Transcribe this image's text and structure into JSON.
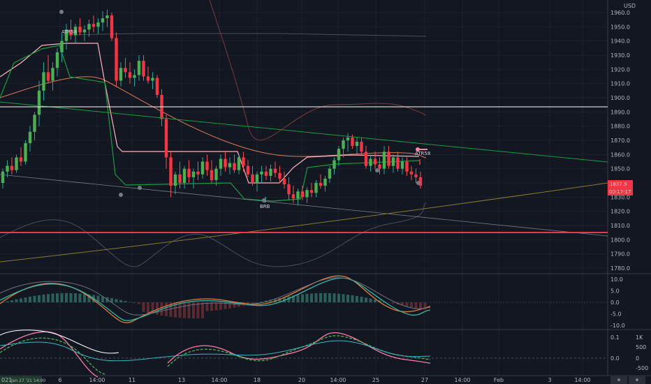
{
  "currency": "USD",
  "price_axis": {
    "min": 1775,
    "max": 1965,
    "labels": [
      "1960.0",
      "1950.0",
      "1940.0",
      "1930.0",
      "1920.0",
      "1910.0",
      "1900.0",
      "1890.0",
      "1880.0",
      "1870.0",
      "1860.0",
      "1850.0",
      "1840.0",
      "1830.0",
      "1820.0",
      "1810.0",
      "1800.0",
      "1790.0",
      "1780.0"
    ]
  },
  "price_tags": {
    "current_price": "1837.9",
    "countdown": "00:17:17",
    "hidden_tag": "1840.0"
  },
  "macd_axis": {
    "labels": [
      "10.0",
      "5.0",
      "0.0",
      "-5.0",
      "-10.0"
    ]
  },
  "osc_axis": {
    "left_labels": [
      "0.1",
      "0.0",
      "-0.1"
    ],
    "right_labels": [
      "1K",
      "500",
      "0",
      "-500"
    ]
  },
  "time_axis": {
    "labels": [
      "6",
      "14:00",
      "11",
      "13",
      "14:00",
      "18",
      "20",
      "14:00",
      "25",
      "27",
      "14:00",
      "Feb",
      "3",
      "14:00"
    ],
    "footer_left": "021",
    "footer_badge": "Jan 27 '21 14:00"
  },
  "annotations": {
    "atr_top": "ATR58",
    "atr_right": "ATR58",
    "brb": "BRB"
  },
  "chart_data": {
    "type": "candlestick",
    "instrument_note": "",
    "ohlc": [
      [
        1840,
        1850,
        1836,
        1848
      ],
      [
        1848,
        1856,
        1844,
        1852
      ],
      [
        1852,
        1858,
        1846,
        1849
      ],
      [
        1849,
        1860,
        1847,
        1858
      ],
      [
        1858,
        1865,
        1852,
        1855
      ],
      [
        1855,
        1870,
        1853,
        1868
      ],
      [
        1868,
        1880,
        1862,
        1876
      ],
      [
        1876,
        1890,
        1870,
        1888
      ],
      [
        1888,
        1912,
        1880,
        1905
      ],
      [
        1905,
        1925,
        1898,
        1918
      ],
      [
        1918,
        1930,
        1910,
        1912
      ],
      [
        1912,
        1925,
        1905,
        1921
      ],
      [
        1921,
        1935,
        1915,
        1932
      ],
      [
        1932,
        1945,
        1925,
        1940
      ],
      [
        1940,
        1952,
        1934,
        1948
      ],
      [
        1948,
        1955,
        1941,
        1944
      ],
      [
        1944,
        1952,
        1938,
        1950
      ],
      [
        1950,
        1956,
        1944,
        1946
      ],
      [
        1946,
        1951,
        1940,
        1948
      ],
      [
        1948,
        1955,
        1943,
        1952
      ],
      [
        1952,
        1958,
        1946,
        1950
      ],
      [
        1950,
        1956,
        1945,
        1953
      ],
      [
        1953,
        1961,
        1947,
        1956
      ],
      [
        1956,
        1962,
        1950,
        1958
      ],
      [
        1958,
        1960,
        1940,
        1942
      ],
      [
        1942,
        1946,
        1908,
        1912
      ],
      [
        1912,
        1925,
        1908,
        1921
      ],
      [
        1921,
        1928,
        1914,
        1918
      ],
      [
        1918,
        1925,
        1910,
        1914
      ],
      [
        1914,
        1920,
        1908,
        1916
      ],
      [
        1916,
        1930,
        1912,
        1926
      ],
      [
        1926,
        1930,
        1912,
        1915
      ],
      [
        1915,
        1922,
        1910,
        1912
      ],
      [
        1912,
        1918,
        1906,
        1914
      ],
      [
        1914,
        1916,
        1900,
        1902
      ],
      [
        1902,
        1906,
        1880,
        1885
      ],
      [
        1885,
        1888,
        1850,
        1858
      ],
      [
        1858,
        1862,
        1830,
        1838
      ],
      [
        1838,
        1848,
        1832,
        1846
      ],
      [
        1846,
        1855,
        1836,
        1840
      ],
      [
        1840,
        1852,
        1836,
        1850
      ],
      [
        1850,
        1856,
        1840,
        1844
      ],
      [
        1844,
        1850,
        1836,
        1848
      ],
      [
        1848,
        1855,
        1842,
        1846
      ],
      [
        1846,
        1858,
        1843,
        1855
      ],
      [
        1855,
        1860,
        1845,
        1849
      ],
      [
        1849,
        1856,
        1840,
        1842
      ],
      [
        1842,
        1852,
        1838,
        1850
      ],
      [
        1850,
        1860,
        1845,
        1857
      ],
      [
        1857,
        1862,
        1848,
        1851
      ],
      [
        1851,
        1858,
        1846,
        1854
      ],
      [
        1854,
        1860,
        1847,
        1849
      ],
      [
        1849,
        1860,
        1846,
        1858
      ],
      [
        1858,
        1862,
        1848,
        1852
      ],
      [
        1852,
        1856,
        1844,
        1846
      ],
      [
        1846,
        1852,
        1838,
        1840
      ],
      [
        1840,
        1848,
        1834,
        1846
      ],
      [
        1846,
        1852,
        1840,
        1848
      ],
      [
        1848,
        1852,
        1842,
        1845
      ],
      [
        1845,
        1853,
        1841,
        1850
      ],
      [
        1850,
        1855,
        1844,
        1847
      ],
      [
        1847,
        1852,
        1840,
        1843
      ],
      [
        1843,
        1848,
        1836,
        1839
      ],
      [
        1839,
        1844,
        1828,
        1832
      ],
      [
        1832,
        1838,
        1826,
        1829
      ],
      [
        1829,
        1836,
        1824,
        1834
      ],
      [
        1834,
        1838,
        1828,
        1830
      ],
      [
        1830,
        1837,
        1826,
        1835
      ],
      [
        1835,
        1840,
        1830,
        1833
      ],
      [
        1833,
        1842,
        1830,
        1840
      ],
      [
        1840,
        1846,
        1836,
        1838
      ],
      [
        1838,
        1845,
        1834,
        1843
      ],
      [
        1843,
        1852,
        1840,
        1850
      ],
      [
        1850,
        1858,
        1846,
        1856
      ],
      [
        1856,
        1866,
        1852,
        1864
      ],
      [
        1864,
        1872,
        1858,
        1870
      ],
      [
        1870,
        1875,
        1862,
        1872
      ],
      [
        1872,
        1874,
        1864,
        1866
      ],
      [
        1866,
        1872,
        1860,
        1869
      ],
      [
        1869,
        1872,
        1860,
        1862
      ],
      [
        1862,
        1866,
        1850,
        1852
      ],
      [
        1852,
        1860,
        1848,
        1857
      ],
      [
        1857,
        1862,
        1850,
        1853
      ],
      [
        1853,
        1858,
        1846,
        1850
      ],
      [
        1850,
        1866,
        1846,
        1862
      ],
      [
        1862,
        1866,
        1850,
        1852
      ],
      [
        1852,
        1860,
        1847,
        1858
      ],
      [
        1858,
        1862,
        1848,
        1850
      ],
      [
        1850,
        1858,
        1846,
        1855
      ],
      [
        1855,
        1858,
        1845,
        1848
      ],
      [
        1848,
        1852,
        1842,
        1846
      ],
      [
        1846,
        1850,
        1840,
        1844
      ],
      [
        1844,
        1848,
        1836,
        1838
      ]
    ]
  }
}
